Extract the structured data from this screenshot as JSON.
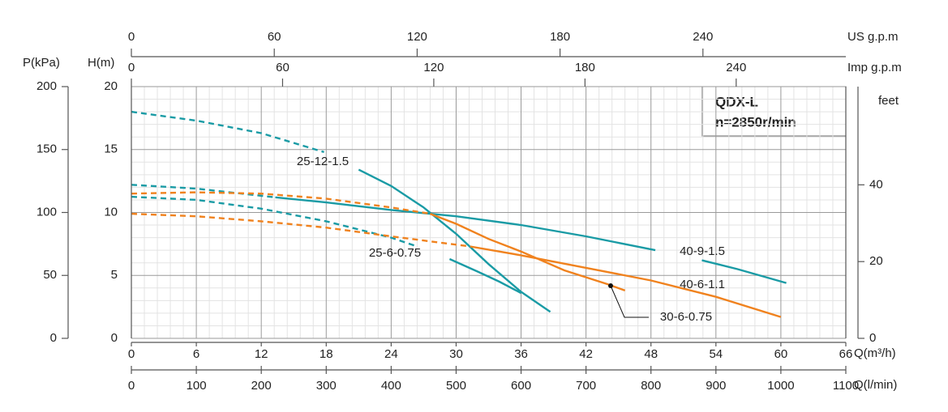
{
  "chart_data": {
    "type": "line",
    "title": "QDX-L",
    "subtitle": "n=2850r/min",
    "xlabel": "Q(m³/h)",
    "xlim": [
      0,
      66
    ],
    "xticks": [
      0,
      6,
      12,
      18,
      24,
      30,
      36,
      42,
      48,
      54,
      60,
      66
    ],
    "ylabel": "H(m)",
    "ylim": [
      0,
      20
    ],
    "yticks": [
      0,
      5,
      10,
      15,
      20
    ],
    "x2label": "Q(l/min)",
    "x2lim": [
      0,
      1100
    ],
    "x2ticks": [
      0,
      100,
      200,
      300,
      400,
      500,
      600,
      700,
      800,
      900,
      1000,
      1100
    ],
    "x3label": "US g.p.m",
    "x3lim": [
      0,
      300
    ],
    "x3ticks": [
      0,
      60,
      120,
      180,
      240
    ],
    "x4label": "Imp g.p.m",
    "x4lim": [
      0,
      283.5
    ],
    "x4ticks": [
      0,
      60,
      120,
      180,
      240
    ],
    "y2label": "P(kPa)",
    "y2lim": [
      0,
      200
    ],
    "y2ticks": [
      0,
      50,
      100,
      150,
      200
    ],
    "y3label": "feet",
    "y3lim": [
      0,
      65.6
    ],
    "y3ticks": [
      0,
      20,
      40
    ],
    "grid": true,
    "series": [
      {
        "name": "25-12-1.5",
        "color": "#1a9ba5",
        "dashed": {
          "x": [
            0,
            6,
            12,
            17.8
          ],
          "values": [
            18.0,
            17.3,
            16.3,
            14.8
          ]
        },
        "x": [
          21,
          24,
          27,
          30,
          33,
          36,
          38.7
        ],
        "values": [
          13.4,
          12.1,
          10.4,
          8.3,
          5.9,
          3.7,
          2.1
        ]
      },
      {
        "name": "25-6-0.75",
        "color": "#1a9ba5",
        "dashed": {
          "x": [
            0,
            6,
            12,
            18,
            24,
            26.4
          ],
          "values": [
            11.25,
            11.0,
            10.3,
            9.3,
            8.0,
            7.3
          ]
        },
        "x": [
          29.4,
          32,
          34,
          36
        ],
        "values": [
          6.3,
          5.3,
          4.5,
          3.6
        ]
      },
      {
        "name": "40-9-1.5",
        "color": "#1a9ba5",
        "dashed": {
          "x": [
            0,
            6,
            13.3
          ],
          "values": [
            12.2,
            11.9,
            11.2
          ]
        },
        "x": [
          13.3,
          18,
          24,
          30,
          36,
          42,
          48.4,
          null,
          52.7,
          56,
          60.5
        ],
        "values": [
          11.2,
          10.8,
          10.2,
          9.7,
          9.0,
          8.1,
          7.0,
          null,
          6.2,
          5.5,
          4.4
        ]
      },
      {
        "name": "40-6-1.1",
        "color": "#f0821e",
        "dashed": {
          "x": [
            0,
            6,
            12,
            18,
            24,
            31.3
          ],
          "values": [
            9.9,
            9.7,
            9.3,
            8.8,
            8.1,
            7.3
          ]
        },
        "x": [
          31.3,
          36,
          42,
          48,
          54,
          60
        ],
        "values": [
          7.3,
          6.6,
          5.6,
          4.6,
          3.3,
          1.7
        ]
      },
      {
        "name": "30-6-0.75",
        "color": "#f0821e",
        "dashed": {
          "x": [
            0,
            6,
            12,
            18,
            24,
            27.6
          ],
          "values": [
            11.5,
            11.6,
            11.5,
            11.1,
            10.4,
            9.9
          ]
        },
        "x": [
          27.6,
          30,
          33,
          36,
          40,
          44,
          45.6
        ],
        "values": [
          9.9,
          9.1,
          7.9,
          6.9,
          5.4,
          4.3,
          3.8
        ]
      }
    ]
  }
}
